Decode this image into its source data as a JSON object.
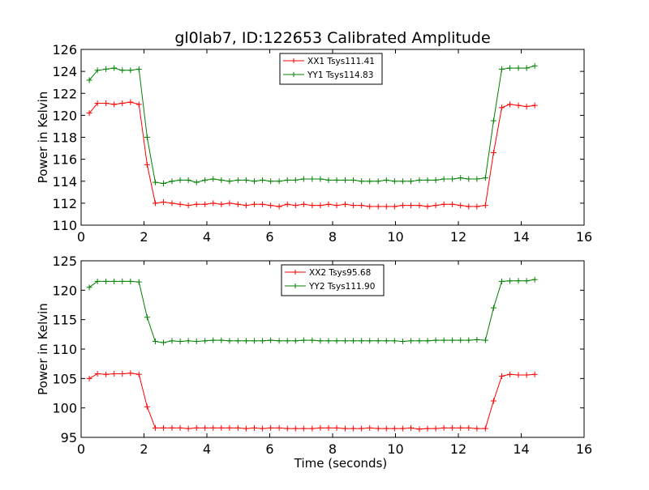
{
  "title": "gl0lab7, ID:122653 Calibrated Amplitude",
  "chart_data": [
    {
      "type": "line",
      "ylabel": "Power in Kelvin",
      "xlabel": "",
      "xlim": [
        0,
        16
      ],
      "ylim": [
        110,
        126
      ],
      "xticks": [
        0,
        2,
        4,
        6,
        8,
        10,
        12,
        14,
        16
      ],
      "yticks": [
        110,
        112,
        114,
        116,
        118,
        120,
        122,
        124,
        126
      ],
      "legend_position": "top-center",
      "series": [
        {
          "name": "XX1 Tsys111.41",
          "color": "#ff0000",
          "marker": "plus",
          "x": [
            0.26,
            0.52,
            0.79,
            1.05,
            1.31,
            1.57,
            1.84,
            2.1,
            2.36,
            2.62,
            2.89,
            3.15,
            3.41,
            3.67,
            3.94,
            4.2,
            4.46,
            4.72,
            4.99,
            5.25,
            5.51,
            5.77,
            6.03,
            6.3,
            6.56,
            6.82,
            7.08,
            7.35,
            7.61,
            7.87,
            8.13,
            8.4,
            8.66,
            8.92,
            9.18,
            9.45,
            9.71,
            9.97,
            10.23,
            10.49,
            10.76,
            11.02,
            11.28,
            11.54,
            11.81,
            12.07,
            12.33,
            12.59,
            12.86,
            13.12,
            13.38,
            13.64,
            13.91,
            14.17,
            14.43
          ],
          "y": [
            120.2,
            121.1,
            121.1,
            121.0,
            121.1,
            121.2,
            121.0,
            115.5,
            112.0,
            112.1,
            112.0,
            111.9,
            111.8,
            111.9,
            111.9,
            112.0,
            111.9,
            112.0,
            111.9,
            111.8,
            111.9,
            111.9,
            111.8,
            111.7,
            111.9,
            111.8,
            111.9,
            111.8,
            111.8,
            111.9,
            111.8,
            111.9,
            111.8,
            111.8,
            111.7,
            111.7,
            111.7,
            111.7,
            111.8,
            111.8,
            111.8,
            111.7,
            111.8,
            111.9,
            111.9,
            111.8,
            111.7,
            111.7,
            111.8,
            116.6,
            120.7,
            121.0,
            120.9,
            120.8,
            120.9
          ]
        },
        {
          "name": "YY1 Tsys114.83",
          "color": "#008000",
          "marker": "plus",
          "x": [
            0.26,
            0.52,
            0.79,
            1.05,
            1.31,
            1.57,
            1.84,
            2.1,
            2.36,
            2.62,
            2.89,
            3.15,
            3.41,
            3.67,
            3.94,
            4.2,
            4.46,
            4.72,
            4.99,
            5.25,
            5.51,
            5.77,
            6.03,
            6.3,
            6.56,
            6.82,
            7.08,
            7.35,
            7.61,
            7.87,
            8.13,
            8.4,
            8.66,
            8.92,
            9.18,
            9.45,
            9.71,
            9.97,
            10.23,
            10.49,
            10.76,
            11.02,
            11.28,
            11.54,
            11.81,
            12.07,
            12.33,
            12.59,
            12.86,
            13.12,
            13.38,
            13.64,
            13.91,
            14.17,
            14.43
          ],
          "y": [
            123.2,
            124.1,
            124.2,
            124.3,
            124.1,
            124.1,
            124.2,
            118.0,
            113.9,
            113.8,
            114.0,
            114.1,
            114.1,
            113.9,
            114.1,
            114.2,
            114.1,
            114.0,
            114.1,
            114.1,
            114.0,
            114.1,
            114.0,
            114.0,
            114.1,
            114.1,
            114.2,
            114.2,
            114.2,
            114.1,
            114.1,
            114.1,
            114.1,
            114.0,
            114.0,
            114.0,
            114.1,
            114.0,
            114.0,
            114.0,
            114.1,
            114.1,
            114.1,
            114.2,
            114.2,
            114.3,
            114.2,
            114.2,
            114.3,
            119.5,
            124.2,
            124.3,
            124.3,
            124.3,
            124.5
          ]
        }
      ]
    },
    {
      "type": "line",
      "ylabel": "Power in Kelvin",
      "xlabel": "Time (seconds)",
      "xlim": [
        0,
        16
      ],
      "ylim": [
        95,
        125
      ],
      "xticks": [
        0,
        2,
        4,
        6,
        8,
        10,
        12,
        14,
        16
      ],
      "yticks": [
        95,
        100,
        105,
        110,
        115,
        120,
        125
      ],
      "legend_position": "top-center",
      "series": [
        {
          "name": "XX2 Tsys95.68",
          "color": "#ff0000",
          "marker": "plus",
          "x": [
            0.26,
            0.52,
            0.79,
            1.05,
            1.31,
            1.57,
            1.84,
            2.1,
            2.36,
            2.62,
            2.89,
            3.15,
            3.41,
            3.67,
            3.94,
            4.2,
            4.46,
            4.72,
            4.99,
            5.25,
            5.51,
            5.77,
            6.03,
            6.3,
            6.56,
            6.82,
            7.08,
            7.35,
            7.61,
            7.87,
            8.13,
            8.4,
            8.66,
            8.92,
            9.18,
            9.45,
            9.71,
            9.97,
            10.23,
            10.49,
            10.76,
            11.02,
            11.28,
            11.54,
            11.81,
            12.07,
            12.33,
            12.59,
            12.86,
            13.12,
            13.38,
            13.64,
            13.91,
            14.17,
            14.43
          ],
          "y": [
            105.0,
            105.8,
            105.7,
            105.8,
            105.8,
            105.9,
            105.7,
            100.2,
            96.6,
            96.6,
            96.6,
            96.6,
            96.5,
            96.6,
            96.6,
            96.6,
            96.6,
            96.6,
            96.6,
            96.5,
            96.6,
            96.5,
            96.6,
            96.6,
            96.5,
            96.5,
            96.5,
            96.5,
            96.6,
            96.6,
            96.6,
            96.5,
            96.5,
            96.5,
            96.6,
            96.5,
            96.5,
            96.5,
            96.5,
            96.6,
            96.4,
            96.5,
            96.5,
            96.6,
            96.6,
            96.6,
            96.6,
            96.5,
            96.5,
            101.2,
            105.4,
            105.7,
            105.6,
            105.6,
            105.7
          ]
        },
        {
          "name": "YY2 Tsys111.90",
          "color": "#008000",
          "marker": "plus",
          "x": [
            0.26,
            0.52,
            0.79,
            1.05,
            1.31,
            1.57,
            1.84,
            2.1,
            2.36,
            2.62,
            2.89,
            3.15,
            3.41,
            3.67,
            3.94,
            4.2,
            4.46,
            4.72,
            4.99,
            5.25,
            5.51,
            5.77,
            6.03,
            6.3,
            6.56,
            6.82,
            7.08,
            7.35,
            7.61,
            7.87,
            8.13,
            8.4,
            8.66,
            8.92,
            9.18,
            9.45,
            9.71,
            9.97,
            10.23,
            10.49,
            10.76,
            11.02,
            11.28,
            11.54,
            11.81,
            12.07,
            12.33,
            12.59,
            12.86,
            13.12,
            13.38,
            13.64,
            13.91,
            14.17,
            14.43
          ],
          "y": [
            120.5,
            121.5,
            121.5,
            121.5,
            121.5,
            121.5,
            121.4,
            115.4,
            111.3,
            111.1,
            111.4,
            111.3,
            111.4,
            111.3,
            111.4,
            111.5,
            111.5,
            111.4,
            111.4,
            111.4,
            111.4,
            111.4,
            111.5,
            111.4,
            111.4,
            111.4,
            111.5,
            111.5,
            111.4,
            111.4,
            111.4,
            111.4,
            111.4,
            111.4,
            111.4,
            111.4,
            111.4,
            111.4,
            111.3,
            111.4,
            111.4,
            111.4,
            111.5,
            111.5,
            111.5,
            111.5,
            111.5,
            111.6,
            111.5,
            117.0,
            121.5,
            121.6,
            121.6,
            121.6,
            121.8
          ]
        }
      ]
    }
  ]
}
